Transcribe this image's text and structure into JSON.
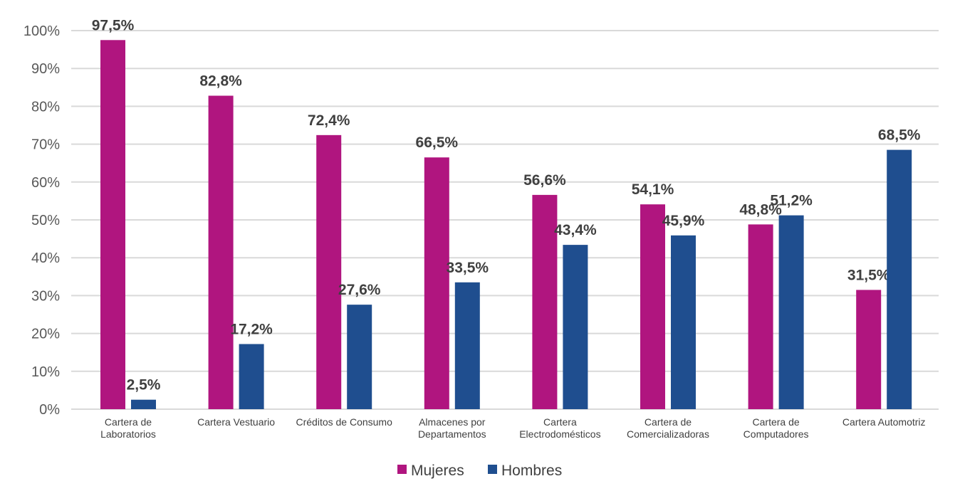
{
  "chart_data": {
    "type": "bar",
    "title": "",
    "xlabel": "",
    "ylabel": "",
    "ylim": [
      0,
      100
    ],
    "yticks": [
      "0%",
      "10%",
      "20%",
      "30%",
      "40%",
      "50%",
      "60%",
      "70%",
      "80%",
      "90%",
      "100%"
    ],
    "grid": true,
    "legend_placement": "bottom",
    "categories": [
      [
        "Cartera de",
        "Laboratorios"
      ],
      [
        "Cartera Vestuario"
      ],
      [
        "Créditos de Consumo"
      ],
      [
        "Almacenes por",
        "Departamentos"
      ],
      [
        "Cartera",
        "Electrodomésticos"
      ],
      [
        "Cartera de",
        "Comercializadoras"
      ],
      [
        "Cartera de",
        "Computadores"
      ],
      [
        "Cartera Automotriz"
      ]
    ],
    "series": [
      {
        "name": "Mujeres",
        "color": "#B0157F",
        "values": [
          97.5,
          82.8,
          72.4,
          66.5,
          56.6,
          54.1,
          48.8,
          31.5
        ],
        "labels": [
          "97,5%",
          "82,8%",
          "72,4%",
          "66,5%",
          "56,6%",
          "54,1%",
          "48,8%",
          "31,5%"
        ]
      },
      {
        "name": "Hombres",
        "color": "#1F4E8F",
        "values": [
          2.5,
          17.2,
          27.6,
          33.5,
          43.4,
          45.9,
          51.2,
          68.5
        ],
        "labels": [
          "2,5%",
          "17,2%",
          "27,6%",
          "33,5%",
          "43,4%",
          "45,9%",
          "51,2%",
          "68,5%"
        ]
      }
    ]
  }
}
